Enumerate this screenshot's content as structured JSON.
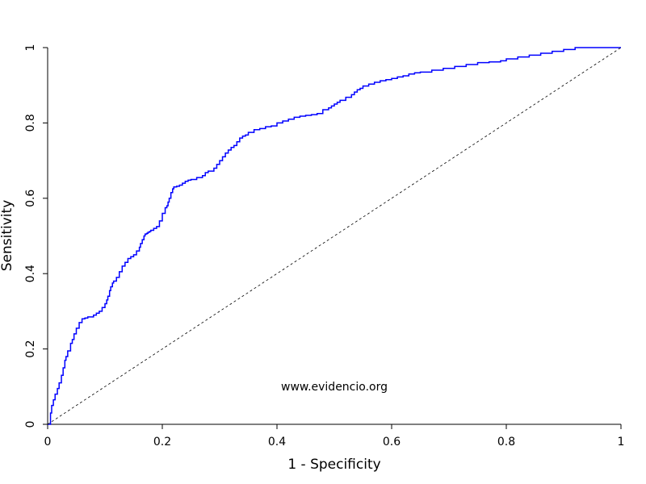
{
  "chart_data": {
    "type": "line",
    "title": "",
    "xlabel": "1 - Specificity",
    "ylabel": "Sensitivity",
    "xlim": [
      0,
      1
    ],
    "ylim": [
      0,
      1
    ],
    "xticks": [
      "0",
      "0.2",
      "0.4",
      "0.6",
      "0.8",
      "1"
    ],
    "yticks": [
      "0",
      "0.2",
      "0.4",
      "0.6",
      "0.8",
      "1"
    ],
    "annotation": "www.evidencio.org",
    "grid": false,
    "series": [
      {
        "color": "#0000ff",
        "style": "step",
        "x": [
          0.0,
          0.005,
          0.007,
          0.01,
          0.013,
          0.017,
          0.02,
          0.024,
          0.027,
          0.03,
          0.032,
          0.035,
          0.04,
          0.043,
          0.046,
          0.05,
          0.055,
          0.06,
          0.065,
          0.07,
          0.08,
          0.085,
          0.09,
          0.095,
          0.1,
          0.103,
          0.105,
          0.108,
          0.11,
          0.113,
          0.115,
          0.12,
          0.125,
          0.13,
          0.135,
          0.14,
          0.145,
          0.15,
          0.155,
          0.16,
          0.162,
          0.165,
          0.168,
          0.17,
          0.173,
          0.175,
          0.178,
          0.18,
          0.185,
          0.19,
          0.195,
          0.2,
          0.205,
          0.208,
          0.21,
          0.212,
          0.215,
          0.218,
          0.22,
          0.225,
          0.23,
          0.235,
          0.24,
          0.245,
          0.25,
          0.26,
          0.27,
          0.275,
          0.28,
          0.29,
          0.295,
          0.3,
          0.305,
          0.31,
          0.315,
          0.32,
          0.325,
          0.33,
          0.335,
          0.34,
          0.345,
          0.35,
          0.36,
          0.37,
          0.38,
          0.39,
          0.4,
          0.41,
          0.42,
          0.43,
          0.44,
          0.45,
          0.46,
          0.47,
          0.48,
          0.49,
          0.495,
          0.5,
          0.505,
          0.51,
          0.52,
          0.53,
          0.535,
          0.54,
          0.545,
          0.55,
          0.56,
          0.57,
          0.58,
          0.59,
          0.6,
          0.61,
          0.62,
          0.63,
          0.64,
          0.65,
          0.67,
          0.69,
          0.71,
          0.73,
          0.75,
          0.77,
          0.79,
          0.8,
          0.82,
          0.84,
          0.86,
          0.88,
          0.9,
          0.92,
          0.93,
          1.0
        ],
        "y": [
          0.0,
          0.03,
          0.05,
          0.065,
          0.08,
          0.095,
          0.11,
          0.13,
          0.15,
          0.17,
          0.18,
          0.195,
          0.215,
          0.225,
          0.24,
          0.255,
          0.27,
          0.28,
          0.282,
          0.285,
          0.29,
          0.295,
          0.3,
          0.31,
          0.32,
          0.33,
          0.34,
          0.355,
          0.365,
          0.375,
          0.38,
          0.39,
          0.405,
          0.42,
          0.43,
          0.44,
          0.445,
          0.45,
          0.46,
          0.47,
          0.48,
          0.49,
          0.5,
          0.505,
          0.507,
          0.51,
          0.512,
          0.515,
          0.52,
          0.525,
          0.54,
          0.56,
          0.575,
          0.58,
          0.59,
          0.6,
          0.615,
          0.625,
          0.63,
          0.632,
          0.635,
          0.64,
          0.645,
          0.648,
          0.65,
          0.655,
          0.66,
          0.668,
          0.672,
          0.68,
          0.69,
          0.7,
          0.71,
          0.72,
          0.728,
          0.735,
          0.74,
          0.75,
          0.76,
          0.765,
          0.768,
          0.775,
          0.782,
          0.785,
          0.79,
          0.792,
          0.8,
          0.805,
          0.81,
          0.815,
          0.818,
          0.82,
          0.822,
          0.825,
          0.835,
          0.84,
          0.845,
          0.85,
          0.855,
          0.86,
          0.868,
          0.875,
          0.882,
          0.888,
          0.892,
          0.898,
          0.903,
          0.908,
          0.912,
          0.915,
          0.918,
          0.922,
          0.925,
          0.93,
          0.933,
          0.935,
          0.94,
          0.945,
          0.95,
          0.955,
          0.96,
          0.962,
          0.965,
          0.97,
          0.975,
          0.98,
          0.985,
          0.99,
          0.995,
          1.0,
          1.0,
          1.0
        ]
      },
      {
        "color": "#000000",
        "style": "dashed",
        "x": [
          0,
          1
        ],
        "y": [
          0,
          1
        ]
      }
    ]
  }
}
